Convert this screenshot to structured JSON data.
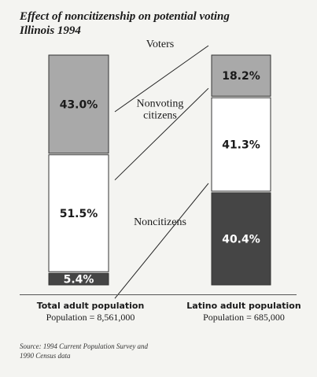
{
  "title_line1": "Effect of noncitizenship on potential voting",
  "title_line2": "Illinois 1994",
  "chart_data": {
    "type": "bar",
    "stacked": true,
    "percent_of_total": true,
    "bars": [
      {
        "name": "Total adult population",
        "population_label": "Population = 8,561,000",
        "segments": [
          {
            "category": "Noncitizens",
            "value": 5.4,
            "label": "5.4%"
          },
          {
            "category": "Nonvoting citizens",
            "value": 51.5,
            "label": "51.5%"
          },
          {
            "category": "Voters",
            "value": 43.0,
            "label": "43.0%"
          }
        ]
      },
      {
        "name": "Latino adult population",
        "population_label": "Population = 685,000",
        "segments": [
          {
            "category": "Noncitizens",
            "value": 40.4,
            "label": "40.4%"
          },
          {
            "category": "Nonvoting citizens",
            "value": 41.3,
            "label": "41.3%"
          },
          {
            "category": "Voters",
            "value": 18.2,
            "label": "18.2%"
          }
        ]
      }
    ],
    "category_labels": [
      {
        "category": "Voters",
        "lines": [
          "Voters"
        ]
      },
      {
        "category": "Nonvoting citizens",
        "lines": [
          "Nonvoting",
          "citizens"
        ]
      },
      {
        "category": "Noncitizens",
        "lines": [
          "Noncitizens"
        ]
      }
    ],
    "colors": {
      "Voters": "#a9a9a9",
      "Nonvoting citizens": "#ffffff",
      "Noncitizens": "#454545"
    },
    "label_colors": {
      "Voters": "#1a1a1a",
      "Nonvoting citizens": "#1a1a1a",
      "Noncitizens": "#ffffff"
    }
  },
  "source_line1": "Source: 1994 Current Population Survey and",
  "source_line2": "1990 Census data"
}
